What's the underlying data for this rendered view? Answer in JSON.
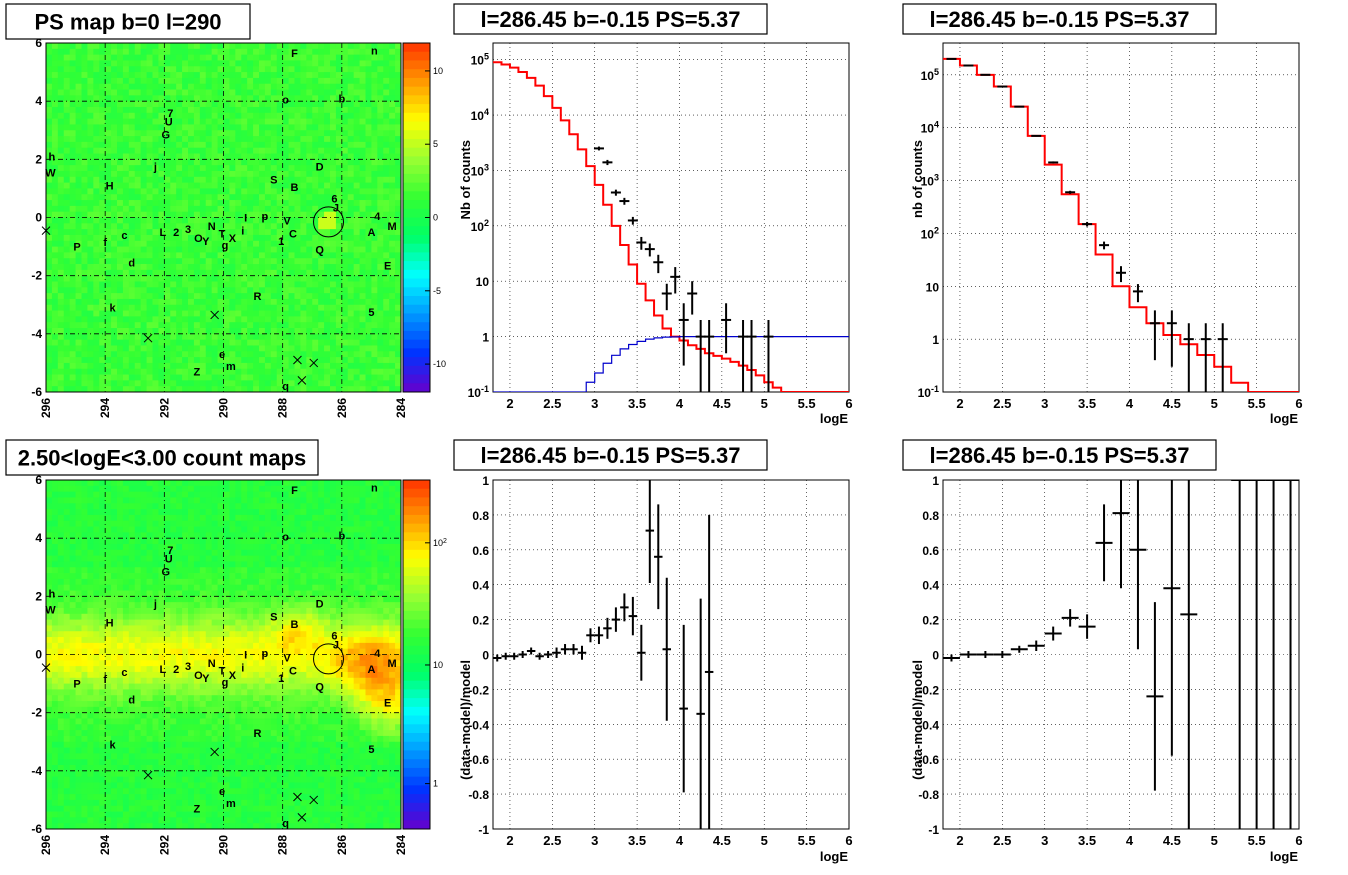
{
  "chart_data": [
    {
      "type": "heatmap",
      "title": "PS map b=0 l=290",
      "xlim": [
        296,
        284
      ],
      "ylim": [
        -6,
        6
      ],
      "x_ticks": [
        "296",
        "294",
        "292",
        "290",
        "288",
        "286",
        "284"
      ],
      "y_ticks": [
        "6",
        "4",
        "2",
        "0",
        "-2",
        "-4",
        "-6"
      ],
      "colorbar_ticks": [
        "10",
        "5",
        "0",
        "-5",
        "-10"
      ],
      "colorscale": [
        "#6600cc",
        "#0033ff",
        "#0099ff",
        "#00ffff",
        "#00ff66",
        "#33ff33",
        "#99ff33",
        "#ffff00",
        "#ff9900",
        "#ff3300"
      ],
      "dominant_color": "#33ee33",
      "circle_center": [
        286.45,
        -0.15
      ],
      "sources": [
        "F",
        "n",
        "o",
        "b",
        "7",
        "U",
        "G",
        "h",
        "j",
        "W",
        "H",
        "S",
        "B",
        "D",
        "6",
        "J",
        "I",
        "4",
        "M",
        "L",
        "2",
        "3",
        "N",
        "T",
        "X",
        "i",
        "p",
        "V",
        "C",
        "A",
        "O",
        "Y",
        "g",
        "1",
        "c",
        "f",
        "P",
        "d",
        "Q",
        "E",
        "k",
        "R",
        "5",
        "e",
        "m",
        "Z",
        "q"
      ],
      "cross_count": 6
    },
    {
      "type": "line",
      "title": "l=286.45 b=-0.15 PS=5.37",
      "xlabel": "logE",
      "ylabel": "Nb of counts",
      "xlim": [
        1.8,
        6
      ],
      "ylim": [
        0.1,
        200000
      ],
      "log_y": true,
      "grid": true,
      "x_ticks": [
        "2",
        "2.5",
        "3",
        "3.5",
        "4",
        "4.5",
        "5",
        "5.5",
        "6"
      ],
      "y_ticks": [
        "10^5",
        "10^4",
        "10^3",
        "10^2",
        "10",
        "1",
        "10^-1"
      ],
      "series": [
        {
          "color": "#ff0000",
          "style": "step",
          "bin_width": 0.1,
          "x": [
            1.8,
            1.9,
            2.0,
            2.1,
            2.2,
            2.3,
            2.4,
            2.5,
            2.6,
            2.7,
            2.8,
            2.9,
            3.0,
            3.1,
            3.2,
            3.3,
            3.4,
            3.5,
            3.6,
            3.7,
            3.8,
            3.9,
            4.0,
            4.1,
            4.2,
            4.3,
            4.4,
            4.5,
            4.6,
            4.7,
            4.8,
            4.9,
            5.0,
            5.1,
            5.2
          ],
          "y": [
            90000,
            82000,
            72000,
            60000,
            47000,
            34000,
            22000,
            13500,
            8000,
            4500,
            2400,
            1200,
            550,
            240,
            100,
            45,
            20,
            9,
            4.5,
            2.4,
            1.4,
            1.0,
            0.85,
            0.7,
            0.6,
            0.5,
            0.45,
            0.4,
            0.35,
            0.3,
            0.25,
            0.2,
            0.15,
            0.12,
            0.1
          ]
        },
        {
          "color": "#0000cc",
          "style": "step",
          "bin_width": 0.1,
          "x": [
            2.8,
            2.9,
            3.0,
            3.1,
            3.2,
            3.3,
            3.4,
            3.5,
            3.6,
            3.7,
            3.8,
            3.9,
            4.0
          ],
          "y": [
            0.1,
            0.15,
            0.22,
            0.33,
            0.46,
            0.6,
            0.72,
            0.82,
            0.9,
            0.95,
            0.98,
            0.99,
            1.0
          ]
        },
        {
          "color": "#000000",
          "style": "errorbar",
          "x": [
            3.05,
            3.15,
            3.25,
            3.35,
            3.45,
            3.55,
            3.65,
            3.75,
            3.85,
            3.95,
            4.05,
            4.15,
            4.25,
            4.35,
            4.55,
            4.75,
            4.85,
            5.05
          ],
          "y": [
            2500,
            1400,
            400,
            280,
            125,
            50,
            38,
            22,
            6,
            12,
            2,
            6,
            1,
            1,
            2,
            1,
            1,
            1
          ],
          "ylo": [
            2300,
            1250,
            350,
            240,
            105,
            37,
            28,
            14,
            3,
            6,
            0.3,
            2.5,
            0.1,
            0.1,
            0.5,
            0.1,
            0.1,
            0.1
          ],
          "yhi": [
            2700,
            1550,
            450,
            320,
            145,
            63,
            48,
            30,
            9,
            18,
            4,
            10,
            2,
            2,
            4,
            2,
            2,
            2
          ]
        }
      ]
    },
    {
      "type": "line",
      "title": "l=286.45 b=-0.15 PS=5.37",
      "xlabel": "logE",
      "ylabel": "nb of counts",
      "xlim": [
        1.8,
        6
      ],
      "ylim": [
        0.1,
        400000
      ],
      "log_y": true,
      "grid": true,
      "x_ticks": [
        "2",
        "2.5",
        "3",
        "3.5",
        "4",
        "4.5",
        "5",
        "5.5",
        "6"
      ],
      "y_ticks": [
        "10^5",
        "10^4",
        "10^3",
        "10^2",
        "10",
        "1",
        "10^-1"
      ],
      "series": [
        {
          "color": "#ff0000",
          "style": "step",
          "bin_width": 0.2,
          "x": [
            1.8,
            2.0,
            2.2,
            2.4,
            2.6,
            2.8,
            3.0,
            3.2,
            3.4,
            3.6,
            3.8,
            4.0,
            4.2,
            4.4,
            4.6,
            4.8,
            5.0,
            5.2,
            5.4
          ],
          "y": [
            200000,
            150000,
            100000,
            60000,
            25000,
            7000,
            2000,
            550,
            150,
            40,
            10,
            4,
            2,
            1.2,
            0.8,
            0.5,
            0.3,
            0.15,
            0.1
          ]
        },
        {
          "color": "#000000",
          "style": "errorbar",
          "x": [
            1.9,
            2.1,
            2.3,
            2.5,
            2.7,
            2.9,
            3.1,
            3.3,
            3.5,
            3.7,
            3.9,
            4.1,
            4.3,
            4.5,
            4.7,
            4.9,
            5.1
          ],
          "y": [
            200000,
            150000,
            100000,
            60000,
            25000,
            7000,
            2200,
            600,
            150,
            60,
            18,
            8,
            2,
            2,
            1,
            1,
            1
          ],
          "ylo": [
            195000,
            146000,
            98000,
            59000,
            24500,
            6800,
            2100,
            560,
            135,
            50,
            12,
            5,
            0.4,
            0.3,
            0.1,
            0.1,
            0.1
          ],
          "yhi": [
            205000,
            154000,
            102000,
            61000,
            25500,
            7200,
            2300,
            640,
            165,
            70,
            24,
            11,
            3.5,
            3.5,
            2,
            2,
            2
          ]
        }
      ]
    },
    {
      "type": "heatmap",
      "title": "2.50<logE<3.00 count maps",
      "xlim": [
        296,
        284
      ],
      "ylim": [
        -6,
        6
      ],
      "x_ticks": [
        "296",
        "294",
        "292",
        "290",
        "288",
        "286",
        "284"
      ],
      "y_ticks": [
        "6",
        "4",
        "2",
        "0",
        "-2",
        "-4",
        "-6"
      ],
      "colorbar_ticks": [
        "10^2",
        "10",
        "1"
      ],
      "colorscale": [
        "#6600cc",
        "#0033ff",
        "#0099ff",
        "#00ffff",
        "#00ff66",
        "#33ff33",
        "#99ff33",
        "#ffff00",
        "#ff9900",
        "#ff3300"
      ],
      "circle_center": [
        286.45,
        -0.15
      ],
      "sources": [
        "F",
        "n",
        "o",
        "b",
        "7",
        "U",
        "G",
        "h",
        "j",
        "W",
        "H",
        "S",
        "B",
        "D",
        "6",
        "J",
        "I",
        "4",
        "M",
        "L",
        "2",
        "3",
        "N",
        "T",
        "X",
        "i",
        "p",
        "V",
        "C",
        "A",
        "O",
        "Y",
        "g",
        "1",
        "c",
        "f",
        "P",
        "d",
        "Q",
        "E",
        "k",
        "R",
        "5",
        "e",
        "m",
        "Z",
        "q"
      ],
      "cross_count": 6
    },
    {
      "type": "scatter",
      "title": "l=286.45 b=-0.15 PS=5.37",
      "xlabel": "logE",
      "ylabel": "(data-model)/model",
      "xlim": [
        1.8,
        6
      ],
      "ylim": [
        -1,
        1
      ],
      "grid": true,
      "x_ticks": [
        "2",
        "2.5",
        "3",
        "3.5",
        "4",
        "4.5",
        "5",
        "5.5",
        "6"
      ],
      "y_ticks": [
        "1",
        "0.8",
        "0.6",
        "0.4",
        "0.2",
        "0",
        "-0.2",
        "-0.4",
        "-0.6",
        "-0.8",
        "-1"
      ],
      "series": [
        {
          "color": "#000000",
          "style": "errorbar",
          "bin_width": 0.1,
          "x": [
            1.85,
            1.95,
            2.05,
            2.15,
            2.25,
            2.35,
            2.45,
            2.55,
            2.65,
            2.75,
            2.85,
            2.95,
            3.05,
            3.15,
            3.25,
            3.35,
            3.45,
            3.55,
            3.65,
            3.75,
            3.85,
            4.05,
            4.25,
            4.35
          ],
          "y": [
            -0.02,
            -0.01,
            -0.01,
            0.0,
            0.02,
            -0.01,
            0.0,
            0.01,
            0.03,
            0.03,
            0.01,
            0.11,
            0.11,
            0.15,
            0.2,
            0.27,
            0.22,
            0.01,
            0.71,
            0.56,
            0.03,
            -0.31,
            -0.34,
            -0.1
          ],
          "err": [
            0.02,
            0.02,
            0.02,
            0.02,
            0.02,
            0.02,
            0.02,
            0.03,
            0.03,
            0.03,
            0.04,
            0.04,
            0.05,
            0.06,
            0.07,
            0.08,
            0.11,
            0.16,
            0.3,
            0.3,
            0.41,
            0.48,
            0.66,
            0.9
          ]
        }
      ]
    },
    {
      "type": "scatter",
      "title": "l=286.45 b=-0.15 PS=5.37",
      "xlabel": "logE",
      "ylabel": "(data-model)/model",
      "xlim": [
        1.8,
        6
      ],
      "ylim": [
        -1,
        1
      ],
      "grid": true,
      "x_ticks": [
        "2",
        "2.5",
        "3",
        "3.5",
        "4",
        "4.5",
        "5",
        "5.5",
        "6"
      ],
      "y_ticks": [
        "1",
        "0.8",
        "0.6",
        "0.4",
        "0.2",
        "0",
        "-0.2",
        "-0.4",
        "-0.6",
        "-0.8",
        "-1"
      ],
      "series": [
        {
          "color": "#000000",
          "style": "errorbar",
          "bin_width": 0.2,
          "x": [
            1.9,
            2.1,
            2.3,
            2.5,
            2.7,
            2.9,
            3.1,
            3.3,
            3.5,
            3.7,
            3.9,
            4.1,
            4.3,
            4.5,
            4.7,
            5.3,
            5.5,
            5.7,
            5.9
          ],
          "y": [
            -0.02,
            0.0,
            0.0,
            0.0,
            0.03,
            0.05,
            0.12,
            0.21,
            0.16,
            0.64,
            0.81,
            0.6,
            -0.24,
            0.38,
            0.23,
            1.0,
            1.0,
            1.0,
            1.0
          ],
          "err": [
            0.02,
            0.02,
            0.02,
            0.02,
            0.02,
            0.03,
            0.04,
            0.05,
            0.07,
            0.22,
            0.43,
            0.57,
            0.54,
            0.96,
            1.3,
            2.0,
            2.0,
            2.0,
            2.0
          ]
        }
      ]
    }
  ]
}
